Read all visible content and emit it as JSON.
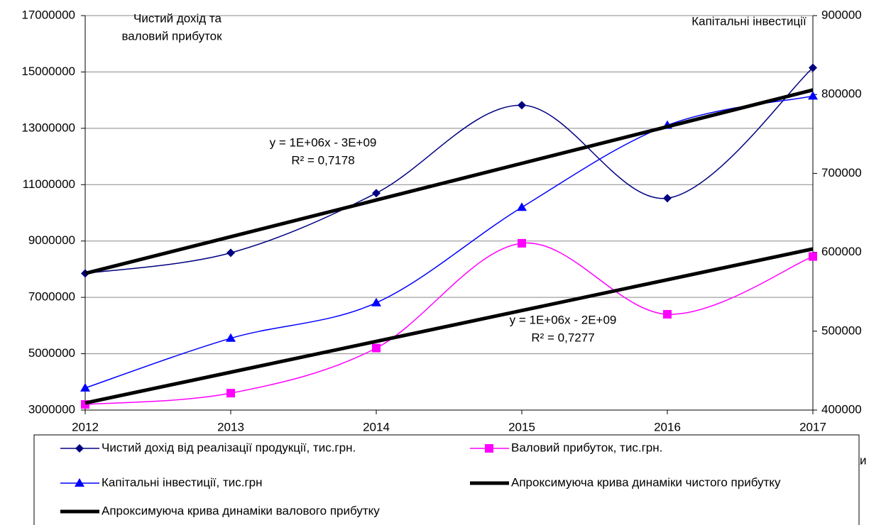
{
  "chart_data": {
    "type": "line",
    "y_label": [
      "Чистий дохід та",
      "валовий прибуток"
    ],
    "y2_label": "Капітальні інвестиції",
    "x": [
      2012,
      2013,
      2014,
      2015,
      2016,
      2017
    ],
    "xlim": [
      2012,
      2017
    ],
    "xticks": [
      2012,
      2013,
      2014,
      2015,
      2016,
      2017
    ],
    "ylim": [
      3000000,
      17000000
    ],
    "yticks": [
      3000000,
      5000000,
      7000000,
      9000000,
      11000000,
      13000000,
      15000000,
      17000000
    ],
    "y2lim": [
      400000,
      900000
    ],
    "y2ticks": [
      400000,
      500000,
      600000,
      700000,
      800000,
      900000
    ],
    "grid": true,
    "legend": "bottom",
    "series": [
      {
        "name": "Чистий дохід від реалізації продукції, тис.грн.",
        "color": "#000080",
        "marker": "diamond",
        "smooth": true,
        "values": [
          7850000,
          8580000,
          10700000,
          13820000,
          10520000,
          15150000
        ]
      },
      {
        "name": "Валовий прибуток, тис.грн.",
        "color": "#ff00ff",
        "marker": "square",
        "smooth": true,
        "values": [
          3200000,
          3600000,
          5200000,
          8920000,
          6400000,
          8450000
        ]
      },
      {
        "name": "Капітальні інвестиції, тис.грн",
        "color": "#0000ff",
        "marker": "triangle",
        "smooth": true,
        "axis": "y2",
        "values": [
          428000,
          491000,
          536000,
          657000,
          761000,
          798000
        ]
      },
      {
        "name": "Апроксимуюча крива динаміки чистого прибутку",
        "color": "#000000",
        "marker": "none",
        "smooth": false,
        "values": [
          7850000,
          9152000,
          10454000,
          11756000,
          13058000,
          14360000
        ]
      },
      {
        "name": "Апроксимуюча крива динаміки валового прибутку",
        "color": "#000000",
        "marker": "none",
        "smooth": false,
        "values": [
          3250000,
          4344000,
          5438000,
          6532000,
          7626000,
          8720000
        ]
      }
    ],
    "annotations": [
      [
        "y = 1E+06x - 3E+09",
        "R² = 0,7178"
      ],
      [
        "y = 1E+06x - 2E+09",
        "R² = 0,7277"
      ]
    ],
    "fragment": "ки"
  }
}
